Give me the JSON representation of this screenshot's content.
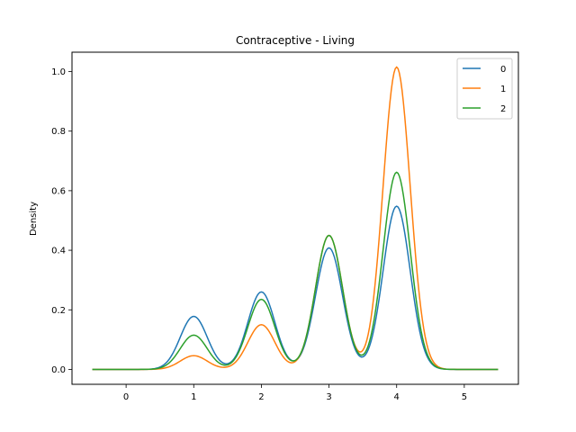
{
  "chart_data": {
    "type": "line",
    "title": "Contraceptive - Living",
    "xlabel": "",
    "ylabel": "Density",
    "xlim": [
      -0.8,
      5.8
    ],
    "ylim": [
      -0.05,
      1.065
    ],
    "xticks": [
      0,
      1,
      2,
      3,
      4,
      5
    ],
    "yticks": [
      0.0,
      0.2,
      0.4,
      0.6,
      0.8,
      1.0
    ],
    "ytick_labels": [
      "0.0",
      "0.2",
      "0.4",
      "0.6",
      "0.8",
      "1.0"
    ],
    "legend_position": "top-right",
    "grid": false,
    "x_range": [
      -0.5,
      5.5
    ],
    "series": [
      {
        "name": "0",
        "color": "#1f77b4",
        "peaks": [
          {
            "x": 1,
            "y": 0.178
          },
          {
            "x": 2,
            "y": 0.26
          },
          {
            "x": 3,
            "y": 0.408
          },
          {
            "x": 4,
            "y": 0.548
          }
        ]
      },
      {
        "name": "1",
        "color": "#ff7f0e",
        "peaks": [
          {
            "x": 1,
            "y": 0.046
          },
          {
            "x": 2,
            "y": 0.15
          },
          {
            "x": 3,
            "y": 0.45
          },
          {
            "x": 4,
            "y": 1.015
          }
        ]
      },
      {
        "name": "2",
        "color": "#2ca02c",
        "peaks": [
          {
            "x": 1,
            "y": 0.115
          },
          {
            "x": 2,
            "y": 0.235
          },
          {
            "x": 3,
            "y": 0.45
          },
          {
            "x": 4,
            "y": 0.662
          }
        ]
      }
    ]
  }
}
